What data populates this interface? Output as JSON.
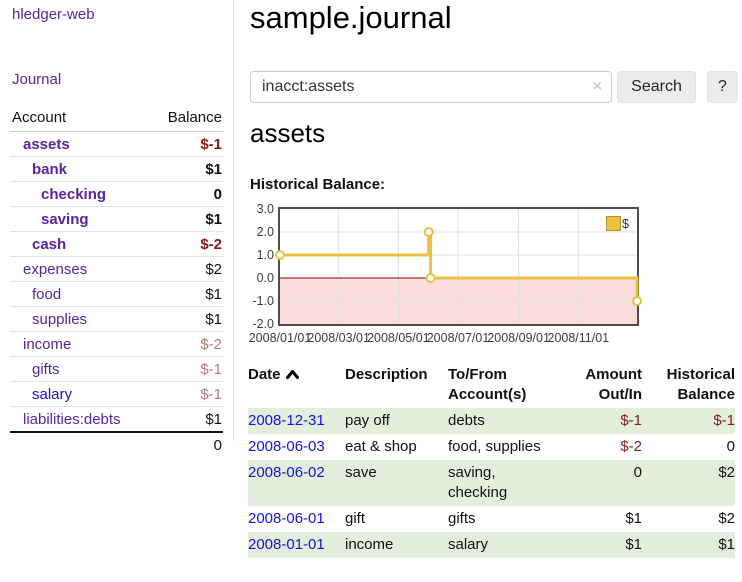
{
  "sidebar": {
    "brand": "hledger-web",
    "journal_link": "Journal",
    "accounts_table": {
      "account_header": "Account",
      "balance_header": "Balance",
      "rows": [
        {
          "name": "assets",
          "depth": 1,
          "bold": true,
          "balance": "$-1",
          "negative": "strong"
        },
        {
          "name": "bank",
          "depth": 2,
          "bold": true,
          "balance": "$1"
        },
        {
          "name": "checking",
          "depth": 3,
          "bold": true,
          "balance": "0"
        },
        {
          "name": "saving",
          "depth": 3,
          "bold": true,
          "balance": "$1"
        },
        {
          "name": "cash",
          "depth": 2,
          "bold": true,
          "balance": "$-2",
          "negative": "strong"
        },
        {
          "name": "expenses",
          "depth": 1,
          "bold": false,
          "balance": "$2"
        },
        {
          "name": "food",
          "depth": 2,
          "bold": false,
          "balance": "$1"
        },
        {
          "name": "supplies",
          "depth": 2,
          "bold": false,
          "balance": "$1"
        },
        {
          "name": "income",
          "depth": 1,
          "bold": false,
          "balance": "$-2",
          "negative": "soft"
        },
        {
          "name": "gifts",
          "depth": 2,
          "bold": false,
          "balance": "$-1",
          "negative": "soft"
        },
        {
          "name": "salary",
          "depth": 2,
          "bold": false,
          "balance": "$-1",
          "negative": "soft",
          "unvisited": true
        },
        {
          "name": "liabilities:debts",
          "depth": 1,
          "bold": false,
          "balance": "$1"
        }
      ],
      "total": "0"
    }
  },
  "header": {
    "title": "sample.journal"
  },
  "search": {
    "value": "inacct:assets",
    "clear_icon": "×",
    "button_label": "Search",
    "help_label": "?"
  },
  "account_page": {
    "heading": "assets",
    "chart_caption": "Historical Balance:"
  },
  "chart_data": {
    "type": "line",
    "step": true,
    "title": "Historical Balance",
    "series": [
      {
        "name": "$",
        "color": "#e9c23f",
        "points": [
          [
            "2008-01-01",
            1
          ],
          [
            "2008-06-01",
            2
          ],
          [
            "2008-06-03",
            0
          ],
          [
            "2008-12-31",
            -1
          ]
        ]
      }
    ],
    "xlim": [
      "2008-01-01",
      "2008-12-31"
    ],
    "ylim": [
      -2,
      3
    ],
    "y_ticks": [
      "3.0",
      "2.0",
      "1.0",
      "0.0",
      "-1.0",
      "-2.0"
    ],
    "x_ticks": [
      {
        "label": "2008/01/01",
        "date": "2008-01-01"
      },
      {
        "label": "2008/03/01",
        "date": "2008-03-01"
      },
      {
        "label": "2008/05/01",
        "date": "2008-05-01"
      },
      {
        "label": "2008/07/01",
        "date": "2008-07-01"
      },
      {
        "label": "2008/09/01",
        "date": "2008-09-01"
      },
      {
        "label": "2008/11/01",
        "date": "2008-11-01"
      }
    ],
    "grid": true,
    "legend": {
      "label": "$",
      "position": "top-right"
    },
    "negative_region_color": "#fbdddd",
    "zero_line_color": "#8b0000",
    "grid_color": "#e0e0e0",
    "border_color": "#4d4d4d"
  },
  "register": {
    "columns": [
      {
        "lines": [
          "Date"
        ],
        "align": "left",
        "sort": "asc"
      },
      {
        "lines": [
          "Description"
        ],
        "align": "left"
      },
      {
        "lines": [
          "To/From",
          "Account(s)"
        ],
        "align": "left"
      },
      {
        "lines": [
          "Amount",
          "Out/In"
        ],
        "align": "right"
      },
      {
        "lines": [
          "Historical",
          "Balance"
        ],
        "align": "right"
      }
    ],
    "rows": [
      {
        "date": "2008-12-31",
        "description": "pay off",
        "accounts_lines": [
          "debts"
        ],
        "amount": "$-1",
        "amount_negative": true,
        "balance": "$-1",
        "balance_negative": true
      },
      {
        "date": "2008-06-03",
        "description": "eat & shop",
        "accounts_lines": [
          "food, supplies"
        ],
        "amount": "$-2",
        "amount_negative": true,
        "balance": "0",
        "balance_negative": false
      },
      {
        "date": "2008-06-02",
        "description": "save",
        "accounts_lines": [
          "saving,",
          "checking"
        ],
        "amount": "0",
        "amount_negative": false,
        "balance": "$2",
        "balance_negative": false
      },
      {
        "date": "2008-06-01",
        "description": "gift",
        "accounts_lines": [
          "gifts"
        ],
        "amount": "$1",
        "amount_negative": false,
        "balance": "$2",
        "balance_negative": false
      },
      {
        "date": "2008-01-01",
        "description": "income",
        "accounts_lines": [
          "salary"
        ],
        "amount": "$1",
        "amount_negative": false,
        "balance": "$1",
        "balance_negative": false
      }
    ]
  }
}
